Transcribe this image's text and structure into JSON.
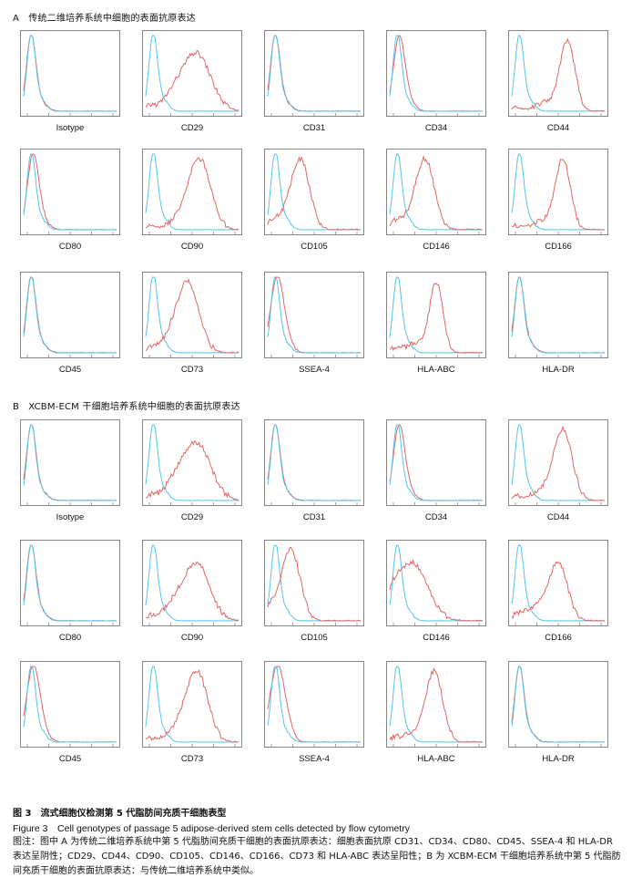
{
  "colors": {
    "isotype": "#55c4e8",
    "antigen": "#e06666",
    "axis": "#666666"
  },
  "sections": [
    {
      "title": "A　传统二维培养系统中细胞的表面抗原表达",
      "panels": [
        {
          "label": "Isotype",
          "antigen_peak": 0.08,
          "antigen_width": 0.05,
          "shape": "neg"
        },
        {
          "label": "CD29",
          "antigen_peak": 0.55,
          "antigen_width": 0.15,
          "shape": "broad"
        },
        {
          "label": "CD31",
          "antigen_peak": 0.08,
          "antigen_width": 0.05,
          "shape": "neg"
        },
        {
          "label": "CD34",
          "antigen_peak": 0.1,
          "antigen_width": 0.06,
          "shape": "neg"
        },
        {
          "label": "CD44",
          "antigen_peak": 0.6,
          "antigen_width": 0.08,
          "shape": "pos"
        },
        {
          "label": "CD80",
          "antigen_peak": 0.1,
          "antigen_width": 0.06,
          "shape": "neg"
        },
        {
          "label": "CD90",
          "antigen_peak": 0.58,
          "antigen_width": 0.12,
          "shape": "pos"
        },
        {
          "label": "CD105",
          "antigen_peak": 0.35,
          "antigen_width": 0.1,
          "shape": "pos"
        },
        {
          "label": "CD146",
          "antigen_peak": 0.38,
          "antigen_width": 0.1,
          "shape": "pos"
        },
        {
          "label": "CD166",
          "antigen_peak": 0.55,
          "antigen_width": 0.08,
          "shape": "pos"
        },
        {
          "label": "CD45",
          "antigen_peak": 0.08,
          "antigen_width": 0.05,
          "shape": "neg"
        },
        {
          "label": "CD73",
          "antigen_peak": 0.45,
          "antigen_width": 0.12,
          "shape": "pos"
        },
        {
          "label": "SSEA-4",
          "antigen_peak": 0.1,
          "antigen_width": 0.07,
          "shape": "neg"
        },
        {
          "label": "HLA-ABC",
          "antigen_peak": 0.5,
          "antigen_width": 0.07,
          "shape": "pos"
        },
        {
          "label": "HLA-DR",
          "antigen_peak": 0.08,
          "antigen_width": 0.05,
          "shape": "neg"
        }
      ]
    },
    {
      "title": "B　XCBM-ECM 干细胞培养系统中细胞的表面抗原表达",
      "panels": [
        {
          "label": "Isotype",
          "antigen_peak": 0.08,
          "antigen_width": 0.05,
          "shape": "neg"
        },
        {
          "label": "CD29",
          "antigen_peak": 0.55,
          "antigen_width": 0.15,
          "shape": "broad"
        },
        {
          "label": "CD31",
          "antigen_peak": 0.08,
          "antigen_width": 0.05,
          "shape": "neg"
        },
        {
          "label": "CD34",
          "antigen_peak": 0.1,
          "antigen_width": 0.06,
          "shape": "neg"
        },
        {
          "label": "CD44",
          "antigen_peak": 0.55,
          "antigen_width": 0.1,
          "shape": "pos"
        },
        {
          "label": "CD80",
          "antigen_peak": 0.08,
          "antigen_width": 0.05,
          "shape": "neg"
        },
        {
          "label": "CD90",
          "antigen_peak": 0.55,
          "antigen_width": 0.14,
          "shape": "broad"
        },
        {
          "label": "CD105",
          "antigen_peak": 0.25,
          "antigen_width": 0.1,
          "shape": "pos"
        },
        {
          "label": "CD146",
          "antigen_peak": 0.25,
          "antigen_width": 0.16,
          "shape": "broad"
        },
        {
          "label": "CD166",
          "antigen_peak": 0.5,
          "antigen_width": 0.1,
          "shape": "broad"
        },
        {
          "label": "CD45",
          "antigen_peak": 0.1,
          "antigen_width": 0.07,
          "shape": "neg"
        },
        {
          "label": "CD73",
          "antigen_peak": 0.55,
          "antigen_width": 0.12,
          "shape": "pos"
        },
        {
          "label": "SSEA-4",
          "antigen_peak": 0.1,
          "antigen_width": 0.08,
          "shape": "neg"
        },
        {
          "label": "HLA-ABC",
          "antigen_peak": 0.48,
          "antigen_width": 0.09,
          "shape": "pos"
        },
        {
          "label": "HLA-DR",
          "antigen_peak": 0.08,
          "antigen_width": 0.05,
          "shape": "neg"
        }
      ]
    }
  ],
  "caption": {
    "title_cn": "图 3　流式细胞仪检测第 5 代脂肪间充质干细胞表型",
    "title_en": "Figure 3　Cell genotypes of passage 5 adipose-derived stem cells detected by flow cytometry",
    "note": "图注：图中 A 为传统二维培养系统中第 5 代脂肪间充质干细胞的表面抗原表达：细胞表面抗原 CD31、CD34、CD80、CD45、SSEA-4 和 HLA-DR 表达呈阴性；CD29、CD44、CD90、CD105、CD146、CD166、CD73 和 HLA-ABC 表达呈阳性；B 为 XCBM-ECM 干细胞培养系统中第 5 代脂肪间充质干细胞的表面抗原表达：与传统二维培养系统中类似。"
  }
}
